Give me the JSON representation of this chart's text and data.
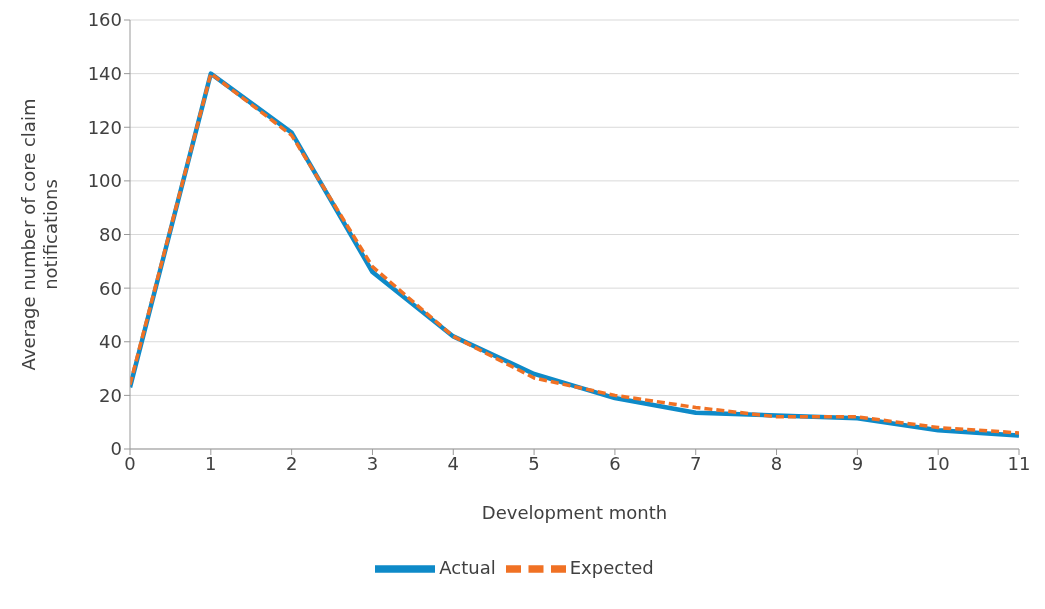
{
  "chart_data": {
    "type": "line",
    "xlabel": "Development month",
    "ylabel": "Average number of core claim notifications",
    "x": [
      0,
      1,
      2,
      3,
      4,
      5,
      6,
      7,
      8,
      9,
      10,
      11
    ],
    "series": [
      {
        "name": "Actual",
        "color": "#0e8ac8",
        "values": [
          23,
          140,
          118,
          66,
          42,
          28,
          19,
          13.5,
          12.5,
          11.5,
          7,
          5
        ],
        "line_style": "solid"
      },
      {
        "name": "Expected",
        "color": "#f07124",
        "values": [
          24,
          140,
          117,
          68,
          42,
          26.5,
          20,
          15.5,
          12,
          12,
          8,
          6
        ],
        "line_style": "dashed"
      }
    ],
    "xlim": [
      0,
      11
    ],
    "xticks": [
      0,
      1,
      2,
      3,
      4,
      5,
      6,
      7,
      8,
      9,
      10,
      11
    ],
    "ylim": [
      0,
      160
    ],
    "yticks": [
      0,
      20,
      40,
      60,
      80,
      100,
      120,
      140,
      160
    ],
    "grid": "y",
    "legend": "bottom",
    "marker": "none"
  }
}
